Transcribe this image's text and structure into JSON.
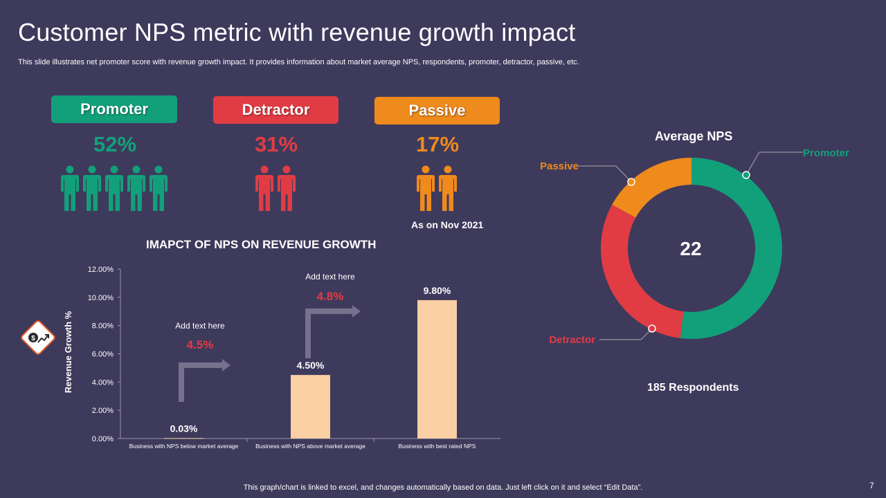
{
  "page": {
    "title": "Customer NPS metric with revenue growth impact",
    "subtitle": "This slide illustrates net promoter score with revenue growth impact. It provides information about market average NPS, respondents, promoter, detractor, passive, etc.",
    "footer": "This graph/chart is linked to excel,  and changes automatically based on data. Just left click on it and select “Edit Data”.",
    "page_number": "7"
  },
  "colors": {
    "background": "#3e3a5c",
    "promoter": "#12a07a",
    "detractor": "#e13c44",
    "passive": "#ef8a1c",
    "bar": "#f9cfa3",
    "arrow": "#77718d"
  },
  "segments": {
    "promoter": {
      "label": "Promoter",
      "percent": "52%",
      "people_count": 5
    },
    "detractor": {
      "label": "Detractor",
      "percent": "31%",
      "people_count": 2
    },
    "passive": {
      "label": "Passive",
      "percent": "17%",
      "people_count": 2
    }
  },
  "as_of": "As  on Nov 2021",
  "donut": {
    "title": "Average NPS",
    "center_value": "22",
    "respondents": "185 Respondents",
    "labels": {
      "promoter": "Promoter",
      "passive": "Passive",
      "detractor": "Detractor"
    }
  },
  "annotations": [
    {
      "text": "Add text here",
      "value": "4.5%"
    },
    {
      "text": "Add text here",
      "value": "4.8%"
    }
  ],
  "icon": "dollar-growth-icon",
  "chart_data": [
    {
      "type": "bar",
      "title": "IMAPCT OF NPS ON REVENUE GROWTH",
      "ylabel": "Revenue Growth %",
      "xlabel": "",
      "categories": [
        "Business with NPS below market average",
        "Business with NPS above market average",
        "Business with best rated NPS"
      ],
      "values": [
        0.03,
        4.5,
        9.8
      ],
      "data_labels": [
        "0.03%",
        "4.50%",
        "9.80%"
      ],
      "ylim": [
        0,
        12
      ],
      "yticks": [
        "0.00%",
        "2.00%",
        "4.00%",
        "6.00%",
        "8.00%",
        "10.00%",
        "12.00%"
      ],
      "grid": false,
      "legend": "none"
    },
    {
      "type": "pie",
      "title": "Average NPS",
      "categories": [
        "Promoter",
        "Detractor",
        "Passive"
      ],
      "values": [
        52,
        31,
        17
      ],
      "legend": "callout-labels"
    }
  ]
}
